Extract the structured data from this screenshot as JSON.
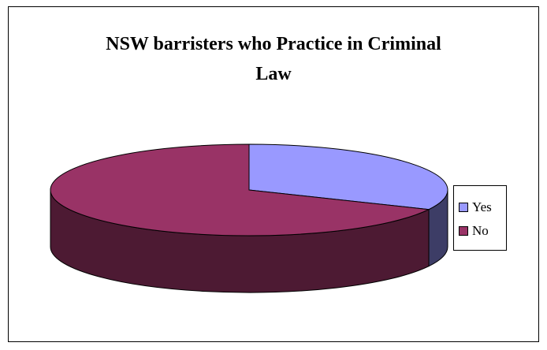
{
  "chart_data": {
    "type": "pie",
    "title_lines": [
      "NSW barristers who Practice in Criminal",
      "Law"
    ],
    "categories": [
      "Yes",
      "No"
    ],
    "values": [
      32,
      68
    ],
    "colors": {
      "Yes": {
        "top": "#9999ff",
        "side": "#3d3d66"
      },
      "No": {
        "top": "#993366",
        "side": "#4d1a33"
      }
    },
    "three_d": true,
    "start_angle_deg": 90,
    "legend_placement": "right"
  }
}
